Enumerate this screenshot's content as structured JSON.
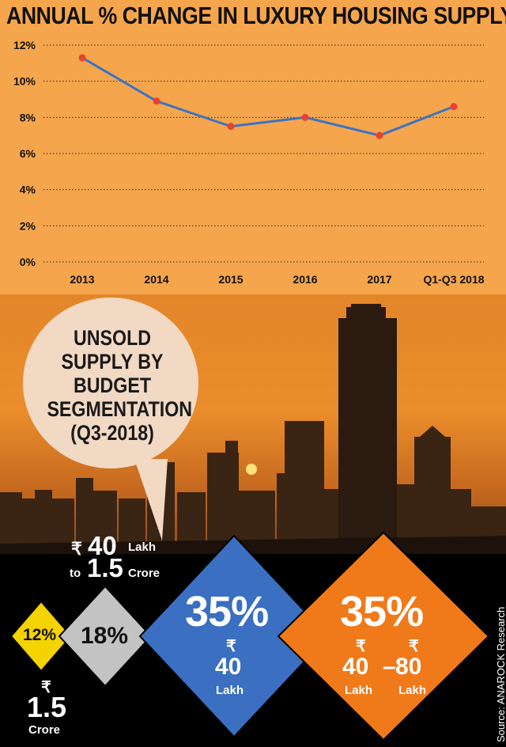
{
  "title": "ANNUAL % CHANGE IN LUXURY HOUSING SUPPLY",
  "chart_data": {
    "type": "line",
    "title": "ANNUAL % CHANGE IN LUXURY HOUSING SUPPLY",
    "categories": [
      "2013",
      "2014",
      "2015",
      "2016",
      "2017",
      "Q1-Q3 2018"
    ],
    "values": [
      11.3,
      8.9,
      7.5,
      8.0,
      7.0,
      8.6
    ],
    "ylim": [
      0,
      12
    ],
    "yticks": [
      "0%",
      "2%",
      "4%",
      "6%",
      "8%",
      "10%",
      "12%"
    ],
    "ytick_values": [
      0,
      2,
      4,
      6,
      8,
      10,
      12
    ],
    "grid": true,
    "line_color": "#3b73c6",
    "marker_color": "#e8422f",
    "background": "#f5a54c"
  },
  "bubble": {
    "lines": [
      "UNSOLD",
      "SUPPLY BY",
      "BUDGET",
      "SEGMENTATION",
      "(Q3-2018)"
    ]
  },
  "segments": [
    {
      "percent": "12%",
      "rupee": "₹",
      "amount": "1.5",
      "unit": "Crore",
      "color": "#f5d300"
    },
    {
      "percent": "18%",
      "rupee": "₹",
      "amount_line1": "40",
      "amount_unit1": "Lakh",
      "amount_to": "to",
      "amount_line2": "1.5",
      "amount_unit2": "Crore",
      "color": "#c3c3c3"
    },
    {
      "percent": "35%",
      "rupee": "₹",
      "amount": "40",
      "unit": "Lakh",
      "color": "#3a6fc1"
    },
    {
      "percent": "35%",
      "rupee": "₹",
      "amount_a": "40",
      "dash": "–",
      "amount_b": "80",
      "unit": "Lakh",
      "color": "#f07a1a"
    }
  ],
  "source": "Source: ANAROCK Research"
}
